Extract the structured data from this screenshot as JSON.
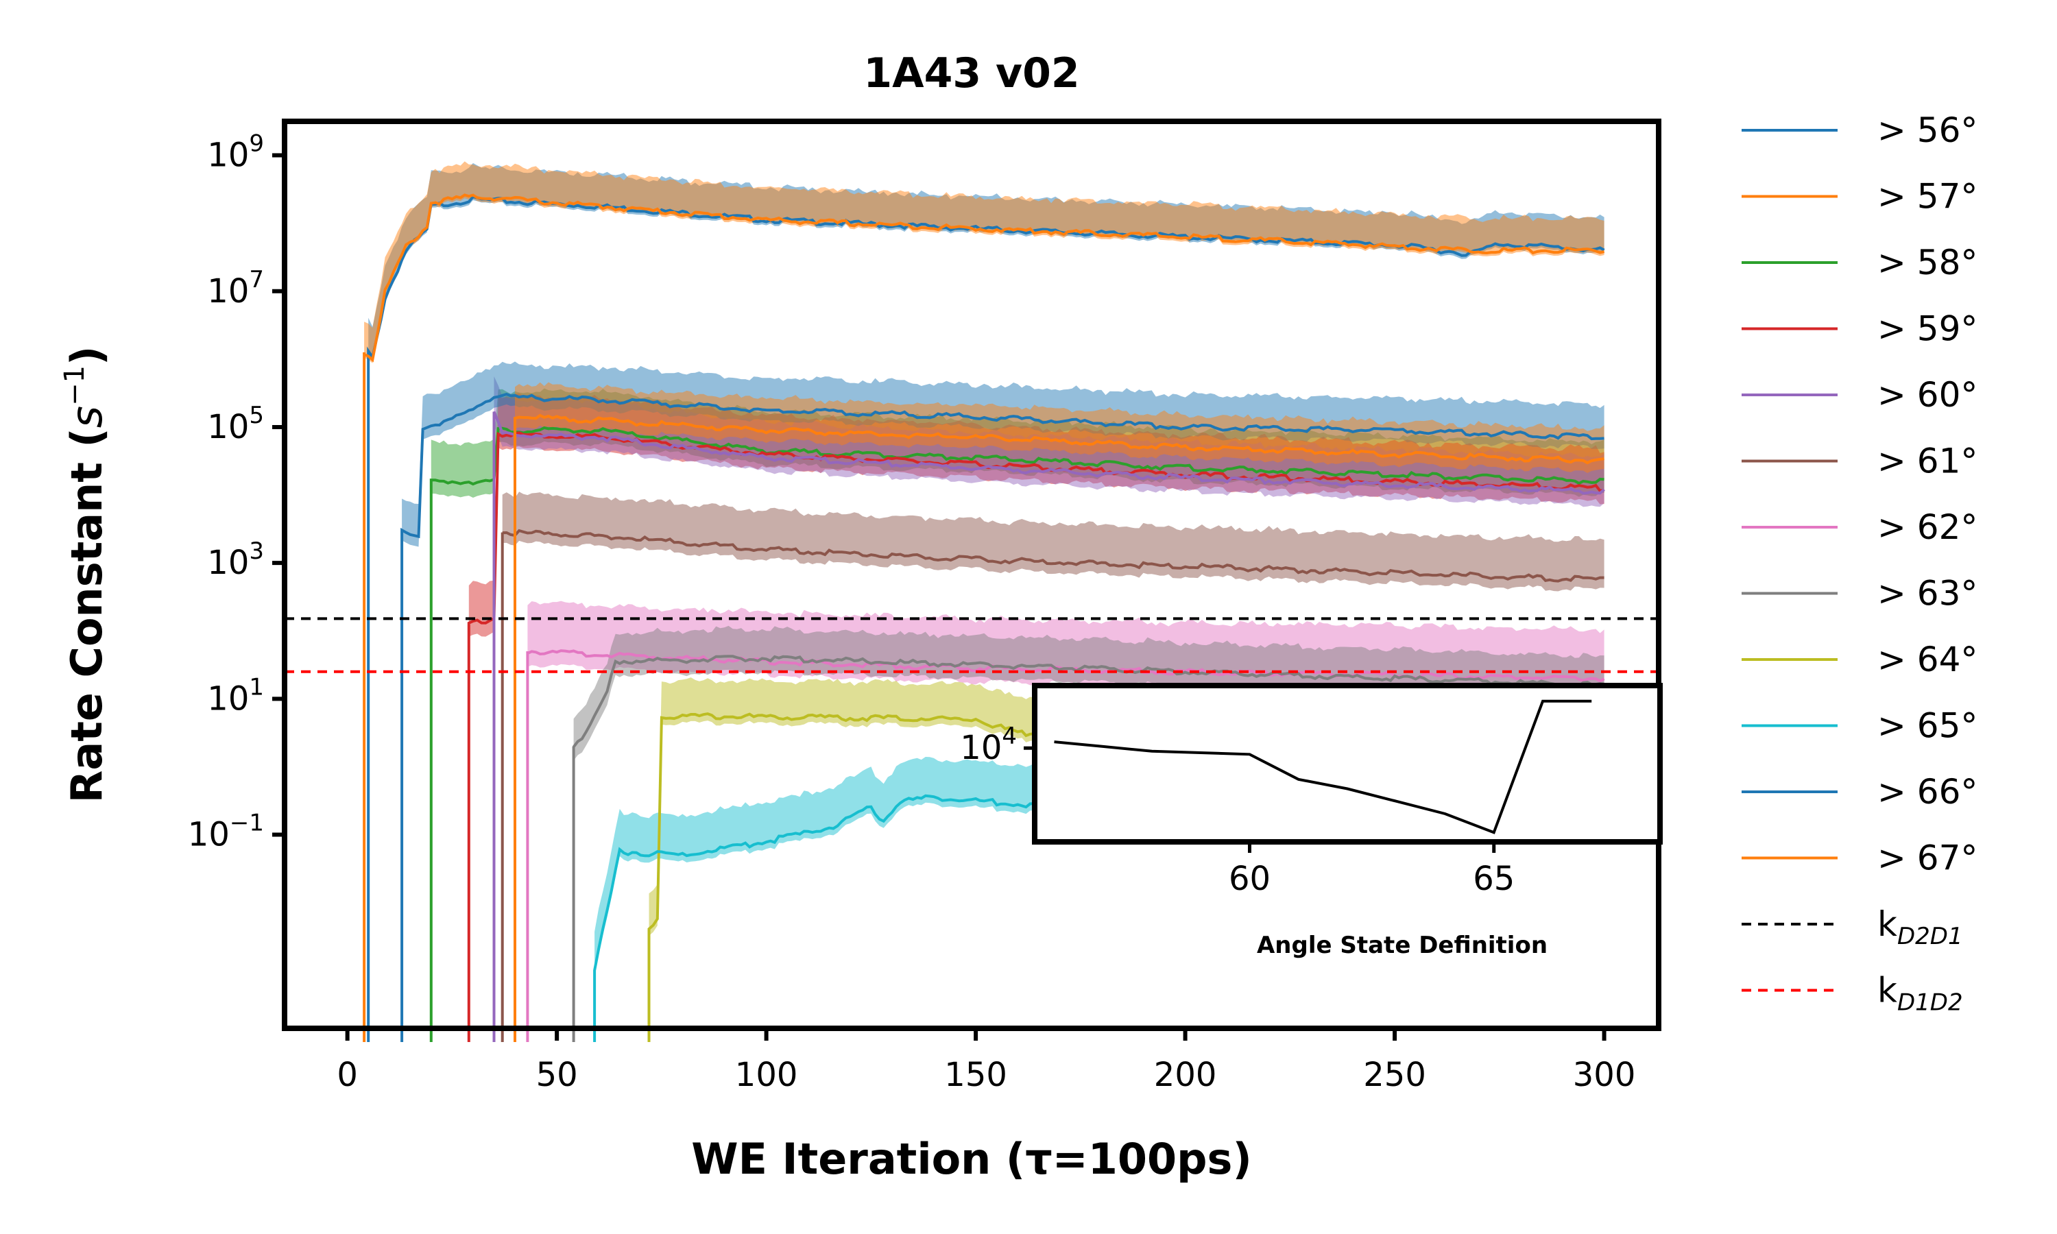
{
  "chart_data": {
    "type": "line",
    "title": "1A43 v02",
    "xlabel": "WE Iteration (τ=100ps)",
    "ylabel_main": "Rate Constant (",
    "ylabel_unit": "s",
    "ylabel_sup": "−1",
    "ylabel_end": ")",
    "yscale": "log",
    "xlim": [
      -15,
      313
    ],
    "ylim_log10": [
      -3.85,
      9.5
    ],
    "x_ticks": [
      0,
      50,
      100,
      150,
      200,
      250,
      300
    ],
    "x_tick_labels": [
      "0",
      "50",
      "100",
      "150",
      "200",
      "250",
      "300"
    ],
    "y_ticks_log10": [
      -1,
      1,
      3,
      5,
      7,
      9
    ],
    "y_tick_base": "10",
    "y_tick_exps": [
      "−1",
      "1",
      "3",
      "5",
      "7",
      "9"
    ],
    "legend_position": "right-outside",
    "series": [
      {
        "name": "> 56°",
        "color": "#1f77b4",
        "start": 5,
        "pts": [
          [
            5,
            6.1
          ],
          [
            6,
            6.0
          ],
          [
            9,
            6.9
          ],
          [
            14,
            7.6
          ],
          [
            19,
            7.9
          ],
          [
            20,
            8.25
          ],
          [
            30,
            8.35
          ],
          [
            60,
            8.25
          ],
          [
            100,
            8.05
          ],
          [
            150,
            7.92
          ],
          [
            200,
            7.8
          ],
          [
            250,
            7.68
          ],
          [
            268,
            7.55
          ],
          [
            275,
            7.7
          ],
          [
            300,
            7.6
          ]
        ],
        "band_lo": 0.05,
        "band_hi": 0.45
      },
      {
        "name": "> 57°",
        "color": "#ff7f0e",
        "start": 4,
        "pts": [
          [
            4,
            6.1
          ],
          [
            6,
            6.0
          ],
          [
            9,
            7.0
          ],
          [
            14,
            7.65
          ],
          [
            19,
            7.95
          ],
          [
            20,
            8.3
          ],
          [
            30,
            8.4
          ],
          [
            60,
            8.25
          ],
          [
            100,
            8.05
          ],
          [
            150,
            7.92
          ],
          [
            200,
            7.8
          ],
          [
            250,
            7.66
          ],
          [
            268,
            7.6
          ],
          [
            300,
            7.6
          ]
        ],
        "band_lo": 0.05,
        "band_hi": 0.45
      },
      {
        "name": "> 58°",
        "color": "#2ca02c",
        "start": 20,
        "pts": [
          [
            20,
            4.2
          ],
          [
            35,
            4.2
          ],
          [
            36,
            4.95
          ],
          [
            60,
            4.95
          ],
          [
            100,
            4.65
          ],
          [
            150,
            4.55
          ],
          [
            200,
            4.4
          ],
          [
            250,
            4.3
          ],
          [
            300,
            4.2
          ]
        ],
        "band_lo": 0.2,
        "band_hi": 0.55
      },
      {
        "name": "> 59°",
        "color": "#d62728",
        "start": 29,
        "pts": [
          [
            29,
            2.1
          ],
          [
            33,
            2.15
          ],
          [
            35,
            2.2
          ],
          [
            36,
            4.9
          ],
          [
            60,
            4.85
          ],
          [
            100,
            4.6
          ],
          [
            150,
            4.45
          ],
          [
            200,
            4.3
          ],
          [
            250,
            4.2
          ],
          [
            300,
            4.1
          ]
        ],
        "band_lo": 0.2,
        "band_hi": 0.55
      },
      {
        "name": "> 60°",
        "color": "#9467bd",
        "start": 35,
        "pts": [
          [
            35,
            5.2
          ],
          [
            37,
            4.9
          ],
          [
            60,
            4.85
          ],
          [
            100,
            4.55
          ],
          [
            150,
            4.4
          ],
          [
            200,
            4.25
          ],
          [
            250,
            4.15
          ],
          [
            300,
            4.05
          ]
        ],
        "band_lo": 0.2,
        "band_hi": 0.5
      },
      {
        "name": "> 61°",
        "color": "#8c564b",
        "start": 37,
        "pts": [
          [
            37,
            3.45
          ],
          [
            60,
            3.4
          ],
          [
            100,
            3.2
          ],
          [
            150,
            3.05
          ],
          [
            200,
            2.95
          ],
          [
            250,
            2.85
          ],
          [
            300,
            2.75
          ]
        ],
        "band_lo": 0.15,
        "band_hi": 0.55
      },
      {
        "name": "> 62°",
        "color": "#e377c2",
        "start": 43,
        "pts": [
          [
            43,
            1.7
          ],
          [
            60,
            1.65
          ],
          [
            100,
            1.55
          ],
          [
            150,
            1.45
          ],
          [
            200,
            1.4
          ],
          [
            250,
            1.35
          ],
          [
            300,
            1.3
          ]
        ],
        "band_lo": 0.2,
        "band_hi": 0.7
      },
      {
        "name": "> 63°",
        "color": "#7f7f7f",
        "start": 54,
        "pts": [
          [
            54,
            0.3
          ],
          [
            58,
            0.6
          ],
          [
            62,
            1.1
          ],
          [
            64,
            1.55
          ],
          [
            100,
            1.6
          ],
          [
            150,
            1.5
          ],
          [
            200,
            1.4
          ],
          [
            250,
            1.3
          ],
          [
            300,
            1.2
          ]
        ],
        "band_lo": 0.2,
        "band_hi": 0.4
      },
      {
        "name": "> 64°",
        "color": "#bcbd22",
        "start": 72,
        "pts": [
          [
            72,
            -2.4
          ],
          [
            74,
            -2.2
          ],
          [
            75,
            0.75
          ],
          [
            150,
            0.7
          ],
          [
            160,
            0.5
          ],
          [
            200,
            0.45
          ],
          [
            250,
            0.5
          ],
          [
            300,
            0.45
          ]
        ],
        "band_lo": 0.1,
        "band_hi": 0.5
      },
      {
        "name": "> 65°",
        "color": "#17becf",
        "start": 59,
        "pts": [
          [
            59,
            -3.0
          ],
          [
            65,
            -1.25
          ],
          [
            80,
            -1.3
          ],
          [
            100,
            -1.1
          ],
          [
            115,
            -0.9
          ],
          [
            125,
            -0.6
          ],
          [
            128,
            -0.8
          ],
          [
            132,
            -0.5
          ],
          [
            140,
            -0.45
          ],
          [
            160,
            -0.55
          ],
          [
            200,
            -0.65
          ],
          [
            250,
            -0.75
          ],
          [
            300,
            -0.8
          ]
        ],
        "band_lo": 0.1,
        "band_hi": 0.55
      },
      {
        "name": "> 66°",
        "color": "#1f77b4",
        "start": 13,
        "pts": [
          [
            13,
            3.45
          ],
          [
            17,
            3.4
          ],
          [
            18,
            5.0
          ],
          [
            25,
            5.1
          ],
          [
            35,
            5.45
          ],
          [
            60,
            5.4
          ],
          [
            100,
            5.25
          ],
          [
            150,
            5.15
          ],
          [
            200,
            5.0
          ],
          [
            250,
            4.95
          ],
          [
            300,
            4.85
          ]
        ],
        "band_lo": 0.15,
        "band_hi": 0.45
      },
      {
        "name": "> 67°",
        "color": "#ff7f0e",
        "start": 40,
        "pts": [
          [
            40,
            5.15
          ],
          [
            60,
            5.1
          ],
          [
            100,
            4.95
          ],
          [
            150,
            4.85
          ],
          [
            200,
            4.7
          ],
          [
            250,
            4.6
          ],
          [
            300,
            4.5
          ]
        ],
        "band_lo": 0.15,
        "band_hi": 0.45
      }
    ],
    "reference_lines": [
      {
        "name": "k",
        "sub": "D2D1",
        "log10_value": 2.18,
        "color": "#000000",
        "dash": "dashed"
      },
      {
        "name": "k",
        "sub": "D1D2",
        "log10_value": 1.4,
        "color": "#ff0000",
        "dash": "dashed"
      }
    ],
    "inset": {
      "xlabel": "Angle State Definition",
      "x_tick_labels": [
        "60",
        "65"
      ],
      "x_ticks": [
        60,
        65
      ],
      "xlim": [
        55.6,
        68.4
      ],
      "y_tick_label_base": "10",
      "y_tick_label_exp": "4",
      "y_tick_log10": 4,
      "ylim_log10": [
        1.0,
        6.0
      ],
      "points": [
        [
          56,
          4.2
        ],
        [
          57,
          4.05
        ],
        [
          58,
          3.9
        ],
        [
          59,
          3.85
        ],
        [
          60,
          3.8
        ],
        [
          61,
          3.0
        ],
        [
          62,
          2.7
        ],
        [
          63,
          2.3
        ],
        [
          64,
          1.9
        ],
        [
          65,
          1.3
        ],
        [
          66,
          5.5
        ],
        [
          67,
          5.5
        ]
      ]
    }
  }
}
